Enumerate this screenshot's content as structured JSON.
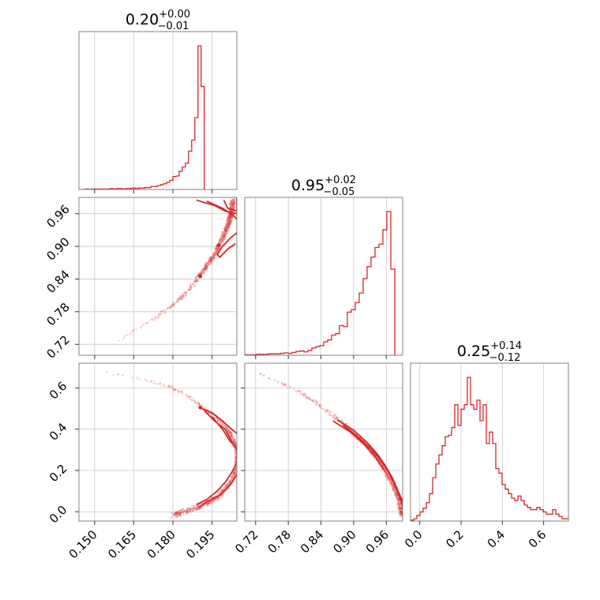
{
  "chart_data": {
    "type": "corner",
    "color": "#d62728",
    "parameters": [
      {
        "title": {
          "median": "0.20",
          "plus": "+0.00",
          "minus": "−0.01"
        },
        "range": [
          0.144,
          0.2045
        ],
        "ticks": [
          "0.150",
          "0.165",
          "0.180",
          "0.195"
        ],
        "tick_values": [
          0.15,
          0.165,
          0.18,
          0.195
        ],
        "hist": {
          "edges_start": 0.144,
          "edges_step": 0.0012,
          "counts": [
            0,
            0,
            1,
            0,
            1,
            1,
            1,
            1,
            1,
            1,
            2,
            1,
            2,
            2,
            1,
            2,
            2,
            3,
            2,
            3,
            3,
            4,
            4,
            6,
            6,
            8,
            10,
            12,
            15,
            19,
            27,
            28,
            38,
            47,
            55,
            80,
            103,
            150,
            300,
            215
          ]
        }
      },
      {
        "title": {
          "median": "0.95",
          "plus": "+0.02",
          "minus": "−0.05"
        },
        "range": [
          0.7,
          0.99
        ],
        "ticks": [
          "0.72",
          "0.78",
          "0.84",
          "0.90",
          "0.96"
        ],
        "tick_values": [
          0.72,
          0.78,
          0.84,
          0.9,
          0.96
        ],
        "hist": {
          "edges_start": 0.7,
          "edges_step": 0.00725,
          "counts": [
            1,
            1,
            1,
            2,
            2,
            2,
            3,
            3,
            3,
            4,
            5,
            4,
            6,
            8,
            9,
            7,
            10,
            15,
            18,
            20,
            28,
            32,
            42,
            45,
            62,
            60,
            90,
            95,
            110,
            130,
            160,
            185,
            205,
            225,
            232,
            262,
            300,
            180
          ]
        }
      },
      {
        "title": {
          "median": "0.25",
          "plus": "+0.14",
          "minus": "−0.12"
        },
        "range": [
          -0.045,
          0.72
        ],
        "ticks": [
          "0.0",
          "0.2",
          "0.4",
          "0.6"
        ],
        "tick_values": [
          0.0,
          0.2,
          0.4,
          0.6
        ],
        "hist": {
          "edges_start": -0.045,
          "edges_step": 0.0153,
          "counts": [
            2,
            5,
            12,
            20,
            28,
            40,
            60,
            95,
            125,
            145,
            165,
            185,
            188,
            205,
            255,
            210,
            245,
            255,
            315,
            255,
            245,
            265,
            220,
            255,
            170,
            195,
            170,
            115,
            105,
            80,
            70,
            60,
            50,
            45,
            55,
            45,
            35,
            30,
            25,
            25,
            30,
            25,
            20,
            15,
            15,
            25,
            15,
            10,
            5,
            5
          ]
        }
      }
    ],
    "pairs": [
      {
        "x_param": 0,
        "y_param": 1,
        "ridge": [
          [
            0.156,
            0.715
          ],
          [
            0.165,
            0.745
          ],
          [
            0.172,
            0.765
          ],
          [
            0.178,
            0.785
          ],
          [
            0.183,
            0.805
          ],
          [
            0.187,
            0.825
          ],
          [
            0.19,
            0.845
          ],
          [
            0.193,
            0.865
          ],
          [
            0.196,
            0.885
          ],
          [
            0.198,
            0.905
          ],
          [
            0.2,
            0.925
          ],
          [
            0.2015,
            0.945
          ],
          [
            0.2025,
            0.965
          ],
          [
            0.203,
            0.985
          ]
        ],
        "contours": [
          [
            [
              0.189,
              0.985
            ],
            [
              0.196,
              0.975
            ],
            [
              0.2,
              0.965
            ],
            [
              0.2045,
              0.96
            ],
            [
              0.2045,
              0.99
            ]
          ],
          [
            [
              0.193,
              0.983
            ],
            [
              0.199,
              0.97
            ],
            [
              0.203,
              0.958
            ],
            [
              0.2045,
              0.95
            ]
          ],
          [
            [
              0.2045,
              0.925
            ],
            [
              0.202,
              0.915
            ],
            [
              0.199,
              0.9
            ],
            [
              0.197,
              0.885
            ],
            [
              0.198,
              0.88
            ],
            [
              0.201,
              0.895
            ],
            [
              0.204,
              0.905
            ]
          ],
          [
            [
              0.1995,
              0.985
            ],
            [
              0.201,
              0.97
            ],
            [
              0.2045,
              0.965
            ]
          ]
        ],
        "highlight": [
          [
            0.1975,
            0.902
          ],
          [
            0.1905,
            0.845
          ]
        ]
      },
      {
        "x_param": 0,
        "y_param": 2,
        "ridge": [
          [
            0.15,
            0.68
          ],
          [
            0.162,
            0.66
          ],
          [
            0.172,
            0.63
          ],
          [
            0.18,
            0.6
          ],
          [
            0.186,
            0.56
          ],
          [
            0.19,
            0.52
          ],
          [
            0.194,
            0.48
          ],
          [
            0.198,
            0.44
          ],
          [
            0.201,
            0.4
          ],
          [
            0.203,
            0.35
          ],
          [
            0.2045,
            0.3
          ],
          [
            0.2045,
            0.22
          ],
          [
            0.203,
            0.16
          ],
          [
            0.2,
            0.11
          ],
          [
            0.197,
            0.07
          ],
          [
            0.193,
            0.04
          ],
          [
            0.189,
            0.02
          ],
          [
            0.184,
            0.0
          ],
          [
            0.18,
            -0.02
          ]
        ],
        "contours": [
          [
            [
              0.19,
              0.505
            ],
            [
              0.195,
              0.48
            ],
            [
              0.199,
              0.44
            ],
            [
              0.2025,
              0.4
            ],
            [
              0.2045,
              0.38
            ]
          ],
          [
            [
              0.192,
              0.49
            ],
            [
              0.196,
              0.44
            ],
            [
              0.2,
              0.4
            ],
            [
              0.203,
              0.33
            ],
            [
              0.2045,
              0.3
            ],
            [
              0.2045,
              0.24
            ],
            [
              0.203,
              0.2
            ],
            [
              0.2005,
              0.15
            ],
            [
              0.197,
              0.1
            ],
            [
              0.193,
              0.06
            ],
            [
              0.189,
              0.035
            ]
          ],
          [
            [
              0.195,
              0.46
            ],
            [
              0.199,
              0.4
            ],
            [
              0.202,
              0.34
            ],
            [
              0.2045,
              0.31
            ]
          ],
          [
            [
              0.2045,
              0.18
            ],
            [
              0.202,
              0.13
            ],
            [
              0.198,
              0.08
            ],
            [
              0.193,
              0.05
            ],
            [
              0.19,
              0.02
            ]
          ]
        ],
        "highlight": [
          [
            0.1905,
            0.505
          ]
        ]
      },
      {
        "x_param": 1,
        "y_param": 2,
        "ridge": [
          [
            0.712,
            0.685
          ],
          [
            0.74,
            0.655
          ],
          [
            0.77,
            0.62
          ],
          [
            0.8,
            0.58
          ],
          [
            0.83,
            0.53
          ],
          [
            0.86,
            0.47
          ],
          [
            0.88,
            0.43
          ],
          [
            0.9,
            0.38
          ],
          [
            0.92,
            0.33
          ],
          [
            0.94,
            0.27
          ],
          [
            0.955,
            0.22
          ],
          [
            0.965,
            0.17
          ],
          [
            0.975,
            0.12
          ],
          [
            0.982,
            0.07
          ],
          [
            0.987,
            0.02
          ],
          [
            0.99,
            -0.02
          ]
        ],
        "contours": [
          [
            [
              0.87,
              0.445
            ],
            [
              0.9,
              0.395
            ],
            [
              0.925,
              0.335
            ],
            [
              0.945,
              0.275
            ],
            [
              0.96,
              0.215
            ],
            [
              0.972,
              0.16
            ],
            [
              0.98,
              0.105
            ],
            [
              0.986,
              0.06
            ],
            [
              0.99,
              0.03
            ]
          ],
          [
            [
              0.88,
              0.42
            ],
            [
              0.905,
              0.37
            ],
            [
              0.93,
              0.31
            ],
            [
              0.95,
              0.25
            ],
            [
              0.963,
              0.2
            ],
            [
              0.975,
              0.135
            ],
            [
              0.985,
              0.08
            ],
            [
              0.99,
              0.05
            ]
          ],
          [
            [
              0.862,
              0.44
            ],
            [
              0.895,
              0.385
            ],
            [
              0.92,
              0.325
            ],
            [
              0.94,
              0.265
            ],
            [
              0.955,
              0.205
            ]
          ]
        ],
        "highlight": []
      }
    ]
  }
}
